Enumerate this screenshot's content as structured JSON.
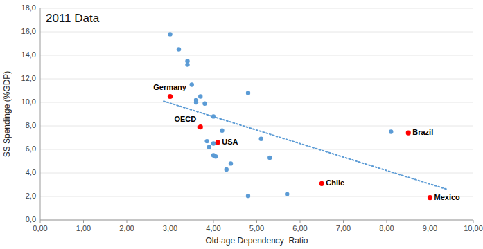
{
  "chart_data": {
    "type": "scatter",
    "title": "2011 Data",
    "xlabel": "Old-age Dependency  Ratio",
    "ylabel": "SS Spendinge (%GDP)",
    "xlim": [
      0,
      10
    ],
    "ylim": [
      0,
      18
    ],
    "xticks": [
      {
        "value": 0,
        "label": "0,00"
      },
      {
        "value": 1,
        "label": "1,00"
      },
      {
        "value": 2,
        "label": "2,00"
      },
      {
        "value": 3,
        "label": "3,00"
      },
      {
        "value": 4,
        "label": "4,00"
      },
      {
        "value": 5,
        "label": "5,00"
      },
      {
        "value": 6,
        "label": "6,00"
      },
      {
        "value": 7,
        "label": "7,00"
      },
      {
        "value": 8,
        "label": "8,00"
      },
      {
        "value": 9,
        "label": "9,00"
      },
      {
        "value": 10,
        "label": "10,00"
      }
    ],
    "yticks": [
      {
        "value": 0,
        "label": "0,0"
      },
      {
        "value": 2,
        "label": "2,0"
      },
      {
        "value": 4,
        "label": "4,0"
      },
      {
        "value": 6,
        "label": "6,0"
      },
      {
        "value": 8,
        "label": "8,0"
      },
      {
        "value": 10,
        "label": "10,0"
      },
      {
        "value": 12,
        "label": "12,0"
      },
      {
        "value": 14,
        "label": "14,0"
      },
      {
        "value": 16,
        "label": "16,0"
      },
      {
        "value": 18,
        "label": "18,0"
      }
    ],
    "grid": "y",
    "series": [
      {
        "type": "scatter",
        "color": "#5B9BD5",
        "x": [
          3.0,
          3.2,
          3.4,
          3.4,
          3.5,
          3.6,
          3.6,
          3.7,
          3.8,
          3.85,
          3.9,
          4.0,
          4.0,
          4.0,
          4.05,
          4.2,
          4.3,
          4.4,
          4.8,
          4.8,
          5.1,
          5.3,
          5.7,
          8.1
        ],
        "values": [
          15.8,
          14.5,
          13.5,
          13.2,
          11.5,
          10.2,
          10.0,
          10.5,
          9.9,
          6.7,
          6.2,
          8.8,
          6.5,
          5.5,
          5.4,
          7.6,
          4.3,
          4.8,
          10.8,
          2.05,
          6.9,
          5.3,
          2.2,
          7.5
        ]
      },
      {
        "type": "scatter",
        "color": "#FF0000",
        "x": [
          3.0,
          3.7,
          4.1,
          6.5,
          8.5,
          9.0
        ],
        "values": [
          10.5,
          7.9,
          6.6,
          3.1,
          7.4,
          1.9
        ],
        "labels": [
          "Germany",
          "OECD",
          "USA",
          "Chile",
          "Brazil",
          "Mexico"
        ]
      },
      {
        "type": "line",
        "color": "#5B9BD5",
        "line_style": "dotted",
        "x": [
          2.85,
          9.4
        ],
        "values": [
          10.1,
          2.6
        ]
      }
    ]
  }
}
